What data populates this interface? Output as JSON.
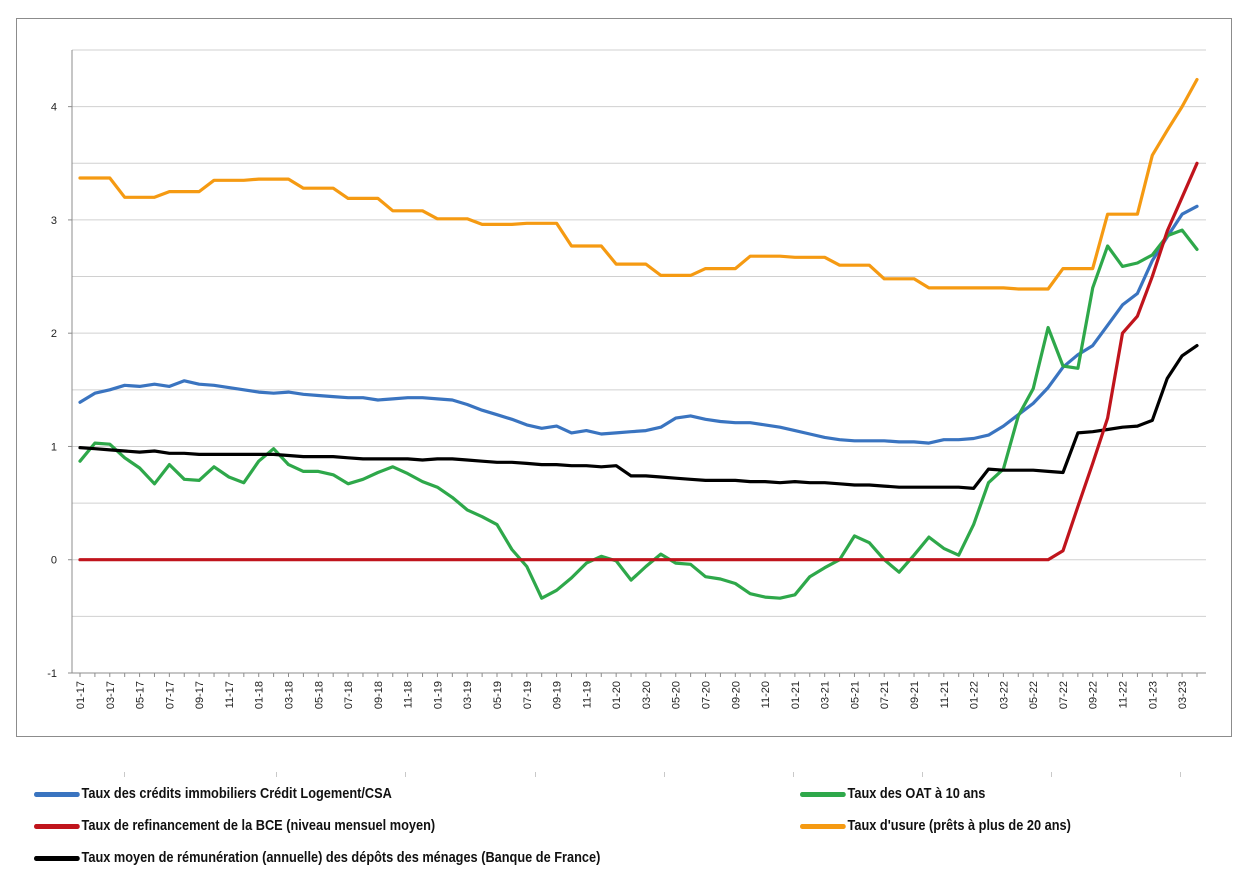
{
  "chart_data": {
    "type": "line",
    "title": "",
    "xlabel": "",
    "ylabel": "",
    "ylim": [
      -1,
      4.5
    ],
    "yticks": [
      -1,
      0,
      1,
      2,
      3,
      4
    ],
    "grid": "horizontal",
    "legend_position": "bottom",
    "x_tick_labels": [
      "01-17",
      "03-17",
      "05-17",
      "07-17",
      "09-17",
      "11-17",
      "01-18",
      "03-18",
      "05-18",
      "07-18",
      "09-18",
      "11-18",
      "01-19",
      "03-19",
      "05-19",
      "07-19",
      "09-19",
      "11-19",
      "01-20",
      "03-20",
      "05-20",
      "07-20",
      "09-20",
      "11-20",
      "01-21",
      "03-21",
      "05-21",
      "07-21",
      "09-21",
      "11-21",
      "01-22",
      "03-22",
      "05-22",
      "07-22",
      "09-22",
      "11-22",
      "01-23",
      "03-23"
    ],
    "x": [
      "01-17",
      "02-17",
      "03-17",
      "04-17",
      "05-17",
      "06-17",
      "07-17",
      "08-17",
      "09-17",
      "10-17",
      "11-17",
      "12-17",
      "01-18",
      "02-18",
      "03-18",
      "04-18",
      "05-18",
      "06-18",
      "07-18",
      "08-18",
      "09-18",
      "10-18",
      "11-18",
      "12-18",
      "01-19",
      "02-19",
      "03-19",
      "04-19",
      "05-19",
      "06-19",
      "07-19",
      "08-19",
      "09-19",
      "10-19",
      "11-19",
      "12-19",
      "01-20",
      "02-20",
      "03-20",
      "04-20",
      "05-20",
      "06-20",
      "07-20",
      "08-20",
      "09-20",
      "10-20",
      "11-20",
      "12-20",
      "01-21",
      "02-21",
      "03-21",
      "04-21",
      "05-21",
      "06-21",
      "07-21",
      "08-21",
      "09-21",
      "10-21",
      "11-21",
      "12-21",
      "01-22",
      "02-22",
      "03-22",
      "04-22",
      "05-22",
      "06-22",
      "07-22",
      "08-22",
      "09-22",
      "10-22",
      "11-22",
      "12-22",
      "01-23",
      "02-23",
      "03-23",
      "04-23"
    ],
    "series": [
      {
        "name": "Taux des crédits immobiliers Crédit Logement/CSA",
        "color": "#3a74c0",
        "values": [
          1.39,
          1.47,
          1.5,
          1.54,
          1.53,
          1.55,
          1.53,
          1.58,
          1.55,
          1.54,
          1.52,
          1.5,
          1.48,
          1.47,
          1.48,
          1.46,
          1.45,
          1.44,
          1.43,
          1.43,
          1.41,
          1.42,
          1.43,
          1.43,
          1.42,
          1.41,
          1.37,
          1.32,
          1.28,
          1.24,
          1.19,
          1.16,
          1.18,
          1.12,
          1.14,
          1.11,
          1.12,
          1.13,
          1.14,
          1.17,
          1.25,
          1.27,
          1.24,
          1.22,
          1.21,
          1.21,
          1.19,
          1.17,
          1.14,
          1.11,
          1.08,
          1.06,
          1.05,
          1.05,
          1.05,
          1.04,
          1.04,
          1.03,
          1.06,
          1.06,
          1.07,
          1.1,
          1.18,
          1.28,
          1.38,
          1.52,
          1.7,
          1.81,
          1.89,
          2.07,
          2.25,
          2.35,
          2.64,
          2.85,
          3.05,
          3.12
        ]
      },
      {
        "name": "Taux des OAT à 10 ans",
        "color": "#2ea84a",
        "values": [
          0.87,
          1.03,
          1.02,
          0.9,
          0.81,
          0.67,
          0.84,
          0.71,
          0.7,
          0.82,
          0.73,
          0.68,
          0.87,
          0.98,
          0.84,
          0.78,
          0.78,
          0.75,
          0.67,
          0.71,
          0.77,
          0.82,
          0.76,
          0.69,
          0.64,
          0.55,
          0.44,
          0.38,
          0.31,
          0.09,
          -0.06,
          -0.34,
          -0.27,
          -0.16,
          -0.03,
          0.03,
          -0.01,
          -0.18,
          -0.06,
          0.05,
          -0.03,
          -0.04,
          -0.15,
          -0.17,
          -0.21,
          -0.3,
          -0.33,
          -0.34,
          -0.31,
          -0.15,
          -0.07,
          0.0,
          0.21,
          0.15,
          0.0,
          -0.11,
          0.04,
          0.2,
          0.1,
          0.04,
          0.31,
          0.68,
          0.8,
          1.27,
          1.51,
          2.05,
          1.71,
          1.69,
          2.4,
          2.77,
          2.59,
          2.62,
          2.69,
          2.86,
          2.91,
          2.74
        ]
      },
      {
        "name": "Taux de refinancement de la BCE (niveau mensuel moyen)",
        "color": "#c0141c",
        "values": [
          0,
          0,
          0,
          0,
          0,
          0,
          0,
          0,
          0,
          0,
          0,
          0,
          0,
          0,
          0,
          0,
          0,
          0,
          0,
          0,
          0,
          0,
          0,
          0,
          0,
          0,
          0,
          0,
          0,
          0,
          0,
          0,
          0,
          0,
          0,
          0,
          0,
          0,
          0,
          0,
          0,
          0,
          0,
          0,
          0,
          0,
          0,
          0,
          0,
          0,
          0,
          0,
          0,
          0,
          0,
          0,
          0,
          0,
          0,
          0,
          0,
          0,
          0,
          0,
          0,
          0,
          0.08,
          0.47,
          0.85,
          1.25,
          2.0,
          2.15,
          2.5,
          2.9,
          3.2,
          3.5
        ]
      },
      {
        "name": "Taux d'usure (prêts à plus de 20 ans)",
        "color": "#f59a12",
        "values": [
          3.37,
          3.37,
          3.37,
          3.2,
          3.2,
          3.2,
          3.25,
          3.25,
          3.25,
          3.35,
          3.35,
          3.35,
          3.36,
          3.36,
          3.36,
          3.28,
          3.28,
          3.28,
          3.19,
          3.19,
          3.19,
          3.08,
          3.08,
          3.08,
          3.01,
          3.01,
          3.01,
          2.96,
          2.96,
          2.96,
          2.97,
          2.97,
          2.97,
          2.77,
          2.77,
          2.77,
          2.61,
          2.61,
          2.61,
          2.51,
          2.51,
          2.51,
          2.57,
          2.57,
          2.57,
          2.68,
          2.68,
          2.68,
          2.67,
          2.67,
          2.67,
          2.6,
          2.6,
          2.6,
          2.48,
          2.48,
          2.48,
          2.4,
          2.4,
          2.4,
          2.4,
          2.4,
          2.4,
          2.39,
          2.39,
          2.39,
          2.57,
          2.57,
          2.57,
          3.05,
          3.05,
          3.05,
          3.57,
          3.79,
          4.0,
          4.24
        ]
      },
      {
        "name": "Taux moyen de rémunération (annuelle) des dépôts des ménages (Banque de France)",
        "color": "#000000",
        "values": [
          0.99,
          0.98,
          0.97,
          0.96,
          0.95,
          0.96,
          0.94,
          0.94,
          0.93,
          0.93,
          0.93,
          0.93,
          0.93,
          0.93,
          0.92,
          0.91,
          0.91,
          0.91,
          0.9,
          0.89,
          0.89,
          0.89,
          0.89,
          0.88,
          0.89,
          0.89,
          0.88,
          0.87,
          0.86,
          0.86,
          0.85,
          0.84,
          0.84,
          0.83,
          0.83,
          0.82,
          0.83,
          0.74,
          0.74,
          0.73,
          0.72,
          0.71,
          0.7,
          0.7,
          0.7,
          0.69,
          0.69,
          0.68,
          0.69,
          0.68,
          0.68,
          0.67,
          0.66,
          0.66,
          0.65,
          0.64,
          0.64,
          0.64,
          0.64,
          0.64,
          0.63,
          0.8,
          0.79,
          0.79,
          0.79,
          0.78,
          0.77,
          1.12,
          1.13,
          1.15,
          1.17,
          1.18,
          1.23,
          1.6,
          1.8,
          1.89
        ]
      }
    ]
  }
}
